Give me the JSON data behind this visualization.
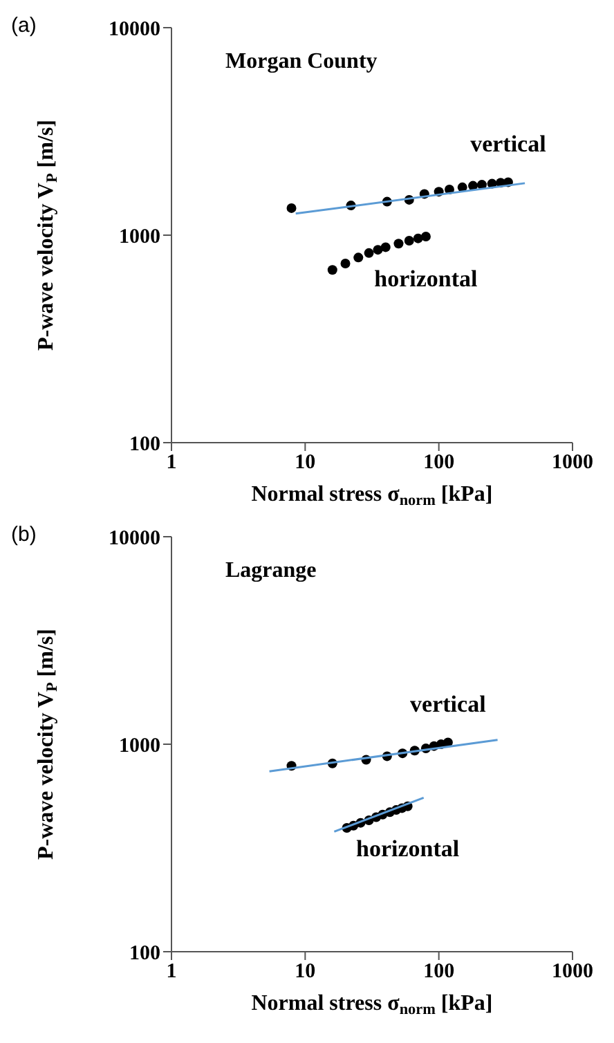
{
  "chart_data": [
    {
      "type": "scatter",
      "title": "(a)",
      "xlabel": "Normal stress σ$_{norm}$ [kPa]",
      "ylabel": "P-wave velocity V$_{P}$ [m/s]",
      "log": "xy",
      "xlim": [
        1,
        1000
      ],
      "ylim": [
        100,
        10000
      ],
      "xticks": [
        1,
        10,
        100,
        1000
      ],
      "yticks": [
        100,
        1000,
        10000
      ],
      "marker": "circle",
      "annotations": [
        "Morgan County"
      ],
      "series": [
        {
          "name": "vertical",
          "color": "#000000",
          "x": [
            7.9,
            22,
            41,
            60,
            78,
            100,
            120,
            150,
            180,
            210,
            250,
            290,
            330
          ],
          "values": [
            1350,
            1390,
            1450,
            1480,
            1580,
            1620,
            1660,
            1700,
            1730,
            1750,
            1770,
            1790,
            1800
          ]
        },
        {
          "name": "horizontal",
          "color": "#000000",
          "x": [
            16,
            20,
            25,
            30,
            35,
            40,
            50,
            60,
            70,
            80
          ],
          "values": [
            680,
            730,
            780,
            820,
            850,
            875,
            910,
            940,
            965,
            985
          ]
        },
        {
          "type": "line",
          "marker": "none",
          "color": "#5b9bd5",
          "x": [
            8.5,
            440
          ],
          "values": [
            1270,
            1780
          ]
        }
      ]
    },
    {
      "type": "scatter",
      "title": "(b)",
      "xlabel": "Normal stress σ$_{norm}$ [kPa]",
      "ylabel": "P-wave velocity V$_{P}$ [m/s]",
      "log": "xy",
      "xlim": [
        1,
        1000
      ],
      "ylim": [
        100,
        10000
      ],
      "xticks": [
        1,
        10,
        100,
        1000
      ],
      "yticks": [
        100,
        1000,
        10000
      ],
      "marker": "circle",
      "annotations": [
        "Lagrange"
      ],
      "series": [
        {
          "name": "vertical",
          "color": "#000000",
          "x": [
            7.9,
            16,
            28.6,
            41,
            53.5,
            66,
            80,
            92,
            104,
            117
          ],
          "values": [
            787,
            808,
            841,
            875,
            904,
            931,
            955,
            980,
            1000,
            1020
          ]
        },
        {
          "name": "horizontal",
          "color": "#000000",
          "x": [
            20.5,
            23,
            26,
            30,
            34,
            38,
            43,
            48,
            53,
            58.5
          ],
          "values": [
            395,
            405,
            418,
            430,
            445,
            458,
            470,
            482,
            492,
            502
          ]
        },
        {
          "type": "line",
          "marker": "none",
          "color": "#5b9bd5",
          "x": [
            5.4,
            275
          ],
          "values": [
            740,
            1050
          ]
        },
        {
          "type": "line",
          "marker": "none",
          "color": "#5b9bd5",
          "x": [
            16.5,
            77
          ],
          "values": [
            379,
            552
          ]
        }
      ]
    }
  ]
}
